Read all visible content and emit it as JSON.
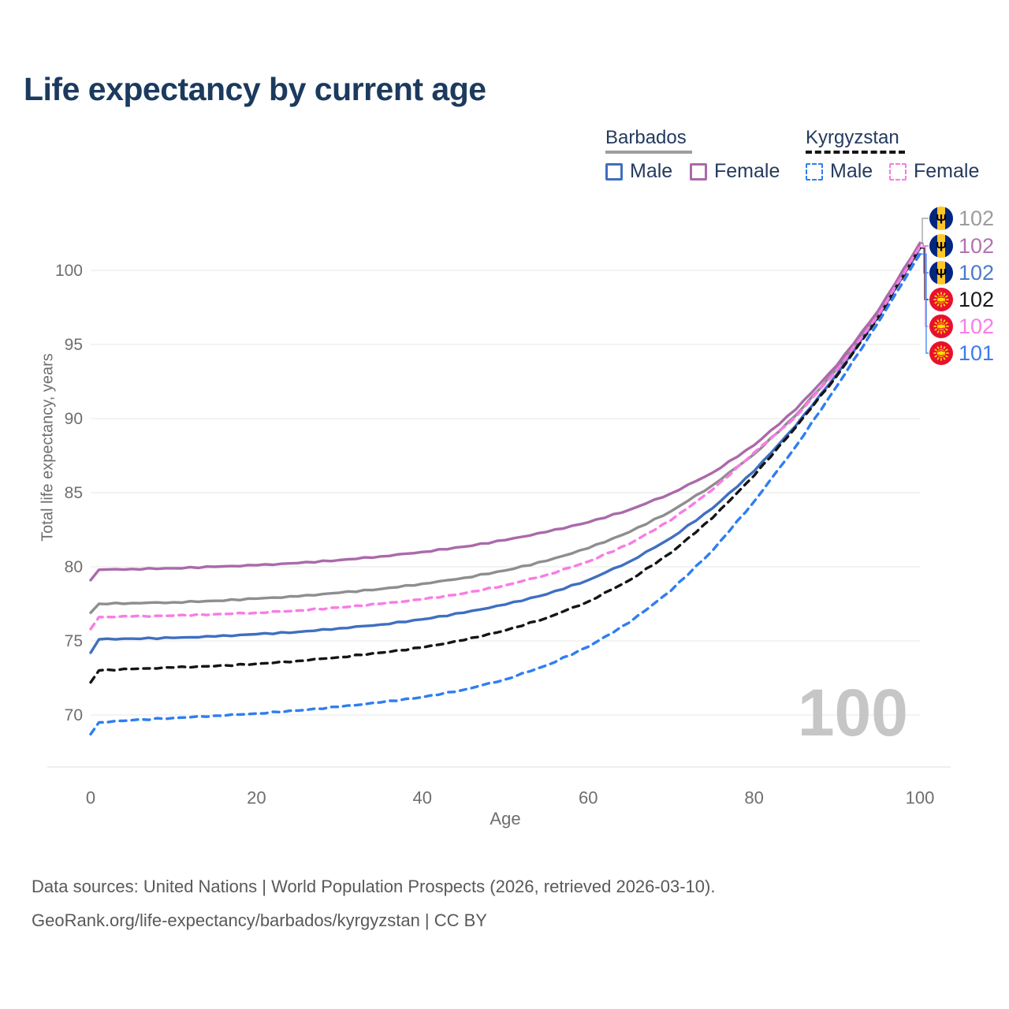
{
  "title": "Life expectancy by current age",
  "legend": {
    "groups": [
      {
        "title": "Barbados",
        "underline_style": "solid",
        "underline_color": "#9e9e9e",
        "items": [
          {
            "label": "Male",
            "color": "#3f6fc1",
            "dashed": false
          },
          {
            "label": "Female",
            "color": "#aa6aaa",
            "dashed": false
          }
        ]
      },
      {
        "title": "Kyrgyzstan",
        "underline_style": "dashed",
        "underline_color": "#161616",
        "items": [
          {
            "label": "Male",
            "color": "#2e7ef2",
            "dashed": true
          },
          {
            "label": "Female",
            "color": "#f97ce4",
            "dashed": true
          }
        ]
      }
    ]
  },
  "watermark_age": "100",
  "endpoints": [
    {
      "flag": "barbados",
      "value": "102",
      "color": "#9c9c9c"
    },
    {
      "flag": "barbados",
      "value": "102",
      "color": "#b173ae"
    },
    {
      "flag": "barbados",
      "value": "102",
      "color": "#4a7bc9"
    },
    {
      "flag": "kyrgyzstan",
      "value": "102",
      "color": "#1a1a1a"
    },
    {
      "flag": "kyrgyzstan",
      "value": "102",
      "color": "#f97ce8"
    },
    {
      "flag": "kyrgyzstan",
      "value": "101",
      "color": "#3b7cf0"
    }
  ],
  "axes": {
    "x": {
      "label": "Age",
      "ticks": [
        0,
        20,
        40,
        60,
        80,
        100
      ],
      "min": 0,
      "max": 100
    },
    "y": {
      "label": "Total life expectancy, years",
      "ticks": [
        70,
        75,
        80,
        85,
        90,
        95,
        100
      ],
      "min": 70,
      "max": 100
    }
  },
  "footer": {
    "line1": "Data sources: United Nations | World Population Prospects (2026, retrieved 2026-03-10).",
    "line2": "GeoRank.org/life-expectancy/barbados/kyrgyzstan | CC BY"
  },
  "chart_data": {
    "type": "line",
    "title": "Life expectancy by current age",
    "xlabel": "Age",
    "ylabel": "Total life expectancy, years",
    "xlim": [
      0,
      100
    ],
    "ylim": [
      70,
      100
    ],
    "grid": "horizontal",
    "legend_position": "top-right",
    "ages": [
      0,
      1,
      5,
      10,
      15,
      20,
      25,
      30,
      35,
      40,
      45,
      50,
      55,
      60,
      65,
      70,
      75,
      80,
      85,
      90,
      95,
      100
    ],
    "series": [
      {
        "name": "Barbados Total",
        "country": "Barbados",
        "sex": "Total",
        "color": "#8e8e8e",
        "dashed": false,
        "values": [
          76.9,
          77.5,
          77.55,
          77.6,
          77.7,
          77.85,
          78.0,
          78.25,
          78.5,
          78.85,
          79.25,
          79.75,
          80.4,
          81.25,
          82.35,
          83.75,
          85.5,
          87.6,
          90.2,
          93.35,
          97.1,
          101.8
        ]
      },
      {
        "name": "Barbados Female",
        "country": "Barbados",
        "sex": "Female",
        "color": "#aa6aaa",
        "dashed": false,
        "values": [
          79.1,
          79.8,
          79.85,
          79.9,
          80.0,
          80.1,
          80.25,
          80.45,
          80.7,
          81.0,
          81.35,
          81.8,
          82.35,
          83.0,
          83.85,
          84.95,
          86.35,
          88.2,
          90.6,
          93.6,
          97.3,
          101.85
        ]
      },
      {
        "name": "Barbados Male",
        "country": "Barbados",
        "sex": "Male",
        "color": "#3f6fc1",
        "dashed": false,
        "values": [
          74.2,
          75.1,
          75.15,
          75.2,
          75.3,
          75.45,
          75.6,
          75.85,
          76.1,
          76.45,
          76.9,
          77.45,
          78.15,
          79.1,
          80.35,
          81.95,
          83.95,
          86.45,
          89.5,
          93.0,
          96.9,
          101.5
        ]
      },
      {
        "name": "Kyrgyzstan Total",
        "country": "Kyrgyzstan",
        "sex": "Total",
        "color": "#151515",
        "dashed": true,
        "values": [
          72.2,
          73.0,
          73.1,
          73.2,
          73.3,
          73.45,
          73.65,
          73.9,
          74.2,
          74.55,
          75.05,
          75.7,
          76.55,
          77.65,
          79.1,
          80.95,
          83.3,
          86.15,
          89.4,
          92.9,
          96.85,
          101.5
        ]
      },
      {
        "name": "Kyrgyzstan Female",
        "country": "Kyrgyzstan",
        "sex": "Female",
        "color": "#f97ce4",
        "dashed": true,
        "values": [
          75.8,
          76.6,
          76.65,
          76.7,
          76.8,
          76.9,
          77.05,
          77.25,
          77.5,
          77.8,
          78.2,
          78.75,
          79.45,
          80.35,
          81.55,
          83.15,
          85.2,
          87.7,
          90.1,
          93.3,
          97.0,
          101.6
        ]
      },
      {
        "name": "Kyrgyzstan Male",
        "country": "Kyrgyzstan",
        "sex": "Male",
        "color": "#2e7ef2",
        "dashed": true,
        "values": [
          68.7,
          69.5,
          69.65,
          69.8,
          69.95,
          70.1,
          70.3,
          70.55,
          70.85,
          71.2,
          71.7,
          72.4,
          73.35,
          74.6,
          76.25,
          78.4,
          81.1,
          84.4,
          88.1,
          92.2,
          96.5,
          101.1
        ]
      }
    ],
    "end_labels": [
      "102",
      "102",
      "102",
      "102",
      "102",
      "101"
    ]
  }
}
